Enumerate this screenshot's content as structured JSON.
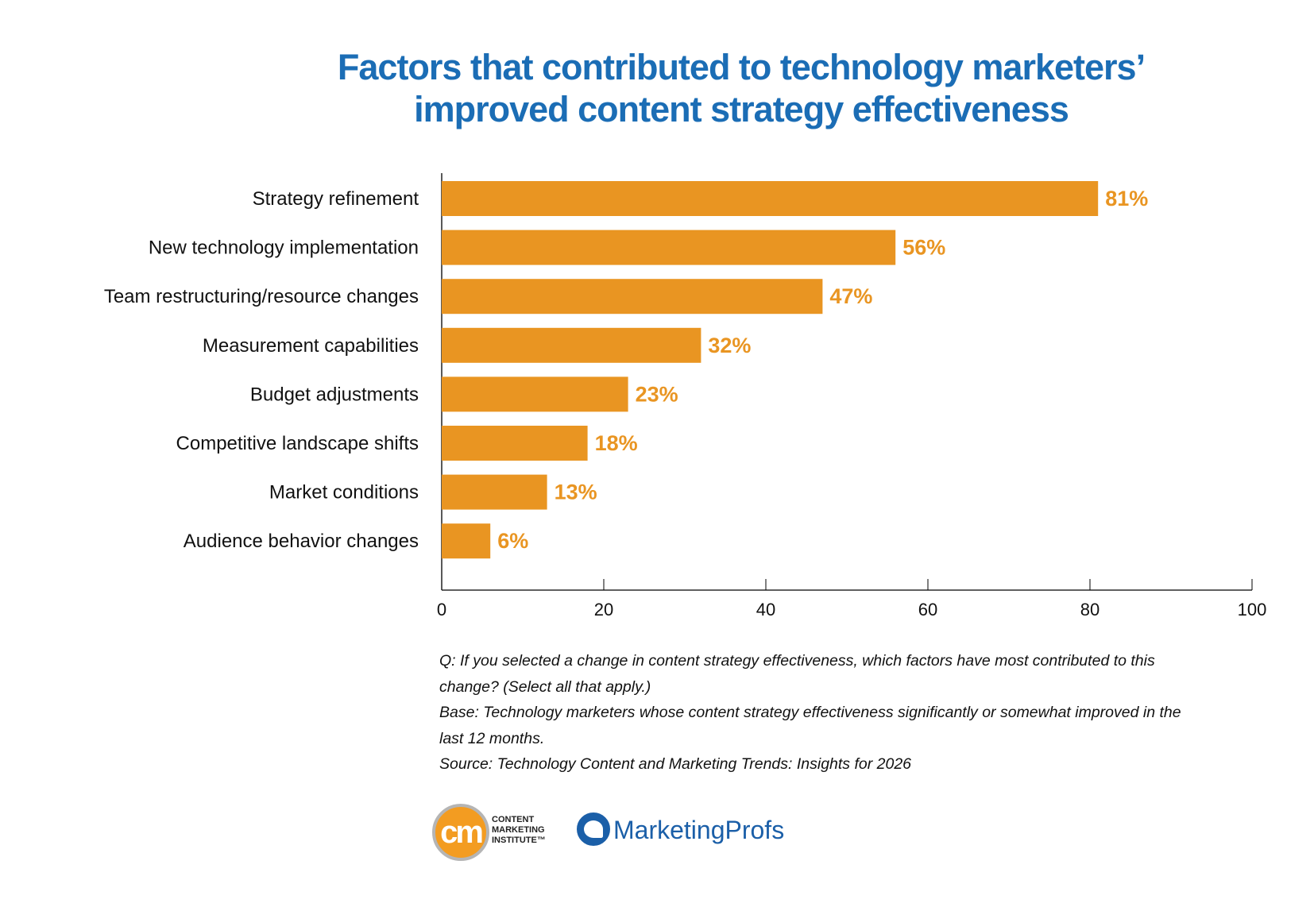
{
  "chart_data": {
    "type": "bar",
    "orientation": "horizontal",
    "title": "Factors that contributed to technology marketers’ improved content strategy effectiveness",
    "title_lines": [
      "Factors that contributed to technology marketers’",
      "improved content strategy effectiveness"
    ],
    "categories": [
      "Strategy refinement",
      "New technology implementation",
      "Team restructuring/resource changes",
      "Measurement capabilities",
      "Budget adjustments",
      "Competitive landscape shifts",
      "Market conditions",
      "Audience behavior changes"
    ],
    "values": [
      81,
      56,
      47,
      32,
      23,
      18,
      13,
      6
    ],
    "data_labels": [
      "81%",
      "56%",
      "47%",
      "32%",
      "23%",
      "18%",
      "13%",
      "6%"
    ],
    "xlim": [
      0,
      100
    ],
    "xticks": [
      "0",
      "20",
      "40",
      "60",
      "80",
      "100"
    ],
    "grid": false,
    "colors": {
      "bar": "#e99522",
      "label": "#e99522",
      "title": "#1b6db5"
    }
  },
  "footnotes": [
    "Q: If you selected a change in content strategy effectiveness, which factors have most contributed to this change? (Select all that apply.)",
    "Base: Technology marketers whose content strategy effectiveness significantly or somewhat improved in the last 12 months.",
    "Source: Technology Content and Marketing Trends: Insights for 2026"
  ],
  "logos": {
    "cmi": {
      "mark": "cm",
      "text": [
        "CONTENT",
        "MARKETING",
        "INSTITUTE™"
      ]
    },
    "mprofs": {
      "text": "MarketingProfs"
    }
  }
}
